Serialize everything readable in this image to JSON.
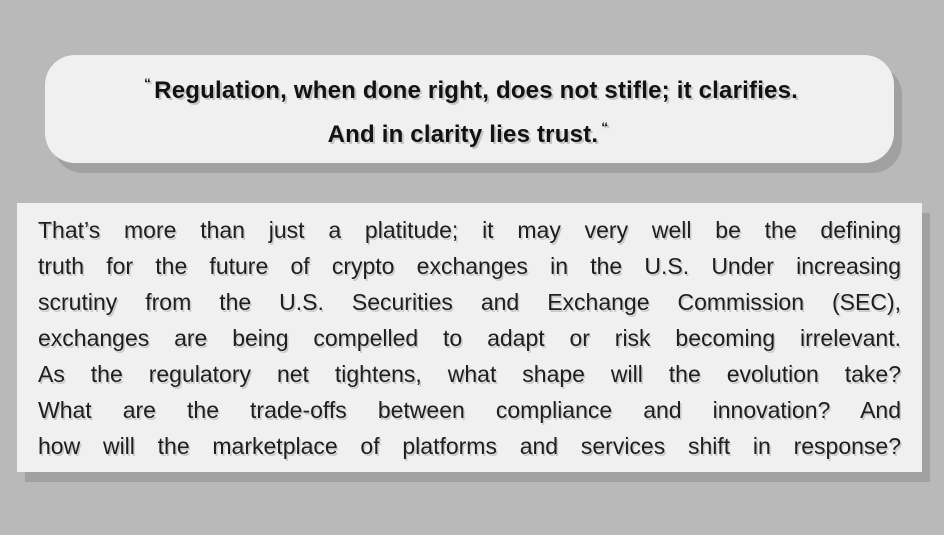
{
  "page": {
    "background_color": "#b9b9b9",
    "card_background_color": "#f0f0f0",
    "shadow_color": "#a1a1a1",
    "text_color": "#1e1e1e"
  },
  "quote": {
    "open_mark": "“",
    "close_mark": "“",
    "line1": "Regulation, when done right, does not stifle; it clarifies.",
    "line2": "And in clarity lies trust.",
    "full_text": "Regulation, when done right, does not stifle; it clarifies. And in clarity lies trust."
  },
  "body": {
    "full_text": "That’s more than just a platitude; it may very well be the defining truth for the future of crypto exchanges in the U.S. Under increasing scrutiny from the U.S. Securities and Exchange Commission (SEC), exchanges are being compelled to adapt or risk becoming irrelevant. As the regulatory net tightens, what shape will the evolution take? What are the trade-offs between compliance and innovation? And how will the marketplace of platforms and services shift in response?",
    "lines": [
      "That’s more than just a platitude; it may very well be the defining",
      "truth for the future of crypto exchanges in the U.S. Under increasing",
      "scrutiny from the U.S. Securities and Exchange Commission (SEC),",
      "exchanges are being compelled to adapt or risk becoming irrelevant.",
      "As the regulatory net tightens, what shape will the evolution take?",
      "What are the trade-offs between compliance and innovation? And",
      "how will the marketplace of platforms and services shift in response?"
    ]
  }
}
